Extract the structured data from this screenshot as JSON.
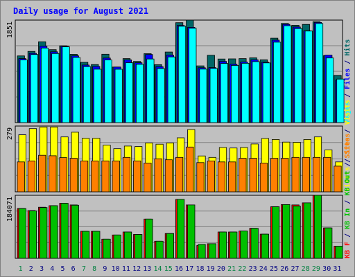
{
  "colors": {
    "background": "#c0c0c0",
    "panel_border": "#000000",
    "title": "#0000ff",
    "grid": "#808080",
    "hits": "#006666",
    "files": "#0000ff",
    "pages": "#00ffff",
    "visits": "#ffff00",
    "sites": "#ff8000",
    "kb_in": "#00c000",
    "kb_out": "#00c000",
    "kb_f": "#ff0000",
    "weekend_label": "#008040",
    "weekday_label": "#000080"
  },
  "chart_data": [
    {
      "type": "bar",
      "title": "Daily usage for August 2021",
      "y_label": "1851",
      "ylim": [
        0,
        1851
      ],
      "legend": [
        {
          "text": "Pages",
          "color": "#00ffff"
        },
        {
          "text": " / ",
          "color": "#000080"
        },
        {
          "text": "Files",
          "color": "#0000ff"
        },
        {
          "text": " / ",
          "color": "#000080"
        },
        {
          "text": "Hits",
          "color": "#006666"
        }
      ],
      "categories": [
        "1",
        "2",
        "3",
        "4",
        "5",
        "6",
        "7",
        "8",
        "9",
        "10",
        "11",
        "12",
        "13",
        "14",
        "15",
        "16",
        "17",
        "18",
        "19",
        "20",
        "21",
        "22",
        "23",
        "24",
        "25",
        "26",
        "27",
        "28",
        "29",
        "30",
        "31"
      ],
      "series": [
        {
          "name": "Hits",
          "values": [
            1205,
            1286,
            1460,
            1317,
            1387,
            1232,
            1088,
            1048,
            1234,
            1003,
            1155,
            1104,
            1245,
            1045,
            1275,
            1805,
            1851,
            1024,
            1216,
            1148,
            1150,
            1155,
            1169,
            1134,
            1525,
            1791,
            1758,
            1773,
            1821,
            1209,
            853
          ]
        },
        {
          "name": "Files",
          "values": [
            1155,
            1250,
            1379,
            1278,
            1379,
            1206,
            1039,
            1014,
            1166,
            1003,
            1132,
            1081,
            1229,
            1010,
            1218,
            1755,
            1721,
            990,
            993,
            1104,
            1054,
            1093,
            1134,
            1089,
            1490,
            1775,
            1727,
            1656,
            1809,
            1218,
            767
          ]
        },
        {
          "name": "Pages",
          "values": [
            1130,
            1230,
            1346,
            1247,
            1368,
            1177,
            1010,
            964,
            1130,
            963,
            1081,
            1052,
            1148,
            975,
            1186,
            1740,
            1703,
            966,
            978,
            1068,
            1032,
            1070,
            1101,
            1078,
            1452,
            1749,
            1699,
            1654,
            1790,
            1167,
            785
          ]
        }
      ]
    },
    {
      "type": "bar",
      "y_label": "279",
      "ylim": [
        0,
        279
      ],
      "legend": [
        {
          "text": "Visits",
          "color": "#ffff00"
        },
        {
          "text": " / ",
          "color": "#000080"
        },
        {
          "text": "Sites",
          "color": "#ff8000"
        }
      ],
      "categories": [
        "1",
        "2",
        "3",
        "4",
        "5",
        "6",
        "7",
        "8",
        "9",
        "10",
        "11",
        "12",
        "13",
        "14",
        "15",
        "16",
        "17",
        "18",
        "19",
        "20",
        "21",
        "22",
        "23",
        "24",
        "25",
        "26",
        "27",
        "28",
        "29",
        "30",
        "31"
      ],
      "series": [
        {
          "name": "Visits",
          "values": [
            242,
            268,
            275,
            275,
            233,
            253,
            227,
            227,
            198,
            183,
            194,
            192,
            207,
            202,
            207,
            229,
            264,
            152,
            146,
            188,
            186,
            188,
            203,
            226,
            222,
            211,
            210,
            222,
            233,
            178,
            127
          ]
        },
        {
          "name": "Sites",
          "values": [
            127,
            131,
            155,
            153,
            145,
            142,
            131,
            131,
            131,
            131,
            146,
            131,
            122,
            140,
            136,
            146,
            190,
            124,
            131,
            127,
            127,
            142,
            142,
            122,
            142,
            142,
            146,
            146,
            146,
            146,
            109
          ]
        }
      ]
    },
    {
      "type": "bar",
      "y_label": "184071",
      "ylim": [
        0,
        184071
      ],
      "legend": [
        {
          "text": "KB F",
          "color": "#ff0000"
        },
        {
          "text": " / ",
          "color": "#000080"
        },
        {
          "text": "KB In",
          "color": "#00c000"
        },
        {
          "text": " / ",
          "color": "#000080"
        },
        {
          "text": "KB Out",
          "color": "#00c000"
        },
        {
          "text": " / ",
          "color": "#000080"
        },
        {
          "text": "Sites",
          "color": "#ff8000"
        },
        {
          "text": " / ",
          "color": "#000080"
        },
        {
          "text": "Visits",
          "color": "#ffff00"
        }
      ],
      "categories": [
        "1",
        "2",
        "3",
        "4",
        "5",
        "6",
        "7",
        "8",
        "9",
        "10",
        "11",
        "12",
        "13",
        "14",
        "15",
        "16",
        "17",
        "18",
        "19",
        "20",
        "21",
        "22",
        "23",
        "24",
        "25",
        "26",
        "27",
        "28",
        "29",
        "30",
        "31"
      ],
      "series": [
        {
          "name": "KB F",
          "values": [
            145340,
            139420,
            149250,
            153800,
            160560,
            156040,
            78870,
            78870,
            55970,
            68160,
            76910,
            69710,
            114780,
            49900,
            72430,
            172190,
            156040,
            37400,
            42750,
            76910,
            76910,
            79720,
            87600,
            70630,
            150680,
            157030,
            156040,
            162040,
            184071,
            88870,
            35380
          ]
        },
        {
          "name": "KB Out",
          "values": [
            145340,
            138450,
            148250,
            153800,
            160560,
            155060,
            78870,
            78870,
            55970,
            68160,
            76910,
            69710,
            114780,
            49900,
            72430,
            172190,
            156040,
            40650,
            42750,
            76910,
            76910,
            79720,
            87600,
            70630,
            150680,
            157030,
            152480,
            162040,
            184071,
            88870,
            35380
          ]
        }
      ]
    }
  ],
  "weekend_days": [
    "1",
    "7",
    "8",
    "14",
    "15",
    "21",
    "22",
    "28",
    "29"
  ]
}
